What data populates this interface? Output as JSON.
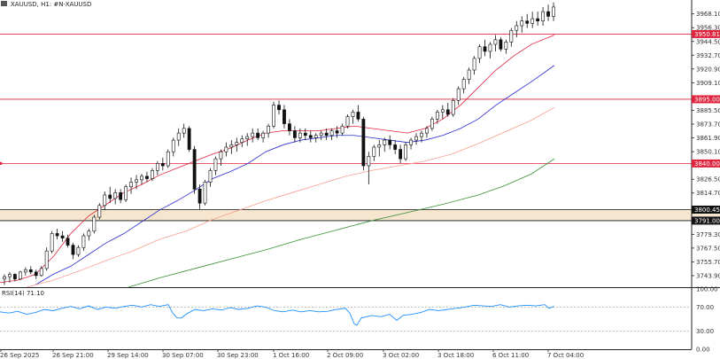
{
  "chart_header": {
    "symbol_label": "XAUUSD, H1:  #N-XAUUSD"
  },
  "rsi_header": {
    "label": "RSI(14) 71.10"
  },
  "price_axis": {
    "ticks": [
      "3968.10",
      "3956.30",
      "3944.50",
      "3932.70",
      "3920.90",
      "3909.10",
      "3885.50",
      "3873.70",
      "3861.90",
      "3850.10",
      "3826.50",
      "3814.70",
      "3779.30",
      "3767.50",
      "3755.70",
      "3743.90"
    ],
    "tick_values": [
      3968.1,
      3956.3,
      3944.5,
      3932.7,
      3920.9,
      3909.1,
      3885.5,
      3873.7,
      3861.9,
      3850.1,
      3826.5,
      3814.7,
      3779.3,
      3767.5,
      3755.7,
      3743.9
    ]
  },
  "price_tags": [
    {
      "text": "3950.81",
      "value": 3950.81,
      "color": "#e0233c"
    },
    {
      "text": "3895.00",
      "value": 3895.0,
      "color": "#e0233c"
    },
    {
      "text": "3840.00",
      "value": 3840.0,
      "color": "#e0233c"
    },
    {
      "text": "3800.45",
      "value": 3800.45,
      "color": "#111111"
    },
    {
      "text": "3791.00",
      "value": 3791.0,
      "color": "#111111"
    }
  ],
  "rsi_axis": {
    "ticks": [
      "100.00",
      "70.00",
      "30.00",
      "0.00"
    ],
    "tick_values": [
      100,
      70,
      30,
      0
    ]
  },
  "time_axis": {
    "labels": [
      "26 Sep 2025",
      "26 Sep 21:00",
      "29 Sep 14:00",
      "30 Sep 07:00",
      "30 Sep 23:00",
      "1 Oct 16:00",
      "2 Oct 09:00",
      "3 Oct 02:00",
      "3 Oct 18:00",
      "6 Oct 11:00",
      "7 Oct 04:00"
    ]
  },
  "chart_data": {
    "type": "candlestick",
    "ylim": [
      3734,
      3980
    ],
    "rsi_ylim": [
      0,
      100
    ],
    "horizontal_lines": [
      {
        "value": 3950.81,
        "color": "#e0233c"
      },
      {
        "value": 3895.0,
        "color": "#e0233c"
      },
      {
        "value": 3840.0,
        "color": "#e0233c"
      }
    ],
    "support_zone": {
      "low": 3791.0,
      "high": 3800.45,
      "color": "#f7e6cf"
    },
    "moving_averages": [
      {
        "color": "#e0233c",
        "points": [
          [
            0,
            3738
          ],
          [
            20,
            3740
          ],
          [
            40,
            3745
          ],
          [
            60,
            3760
          ],
          [
            80,
            3780
          ],
          [
            100,
            3795
          ],
          [
            120,
            3805
          ],
          [
            140,
            3815
          ],
          [
            160,
            3822
          ],
          [
            180,
            3830
          ],
          [
            200,
            3836
          ],
          [
            220,
            3842
          ],
          [
            240,
            3848
          ],
          [
            260,
            3853
          ],
          [
            280,
            3860
          ],
          [
            300,
            3866
          ],
          [
            320,
            3868
          ],
          [
            340,
            3868
          ],
          [
            360,
            3868
          ],
          [
            380,
            3870
          ],
          [
            400,
            3872
          ],
          [
            420,
            3870
          ],
          [
            440,
            3868
          ],
          [
            460,
            3866
          ],
          [
            480,
            3870
          ],
          [
            500,
            3878
          ],
          [
            520,
            3890
          ],
          [
            540,
            3905
          ],
          [
            560,
            3920
          ],
          [
            580,
            3932
          ],
          [
            600,
            3942
          ],
          [
            626,
            3950
          ]
        ]
      },
      {
        "color": "#2a2ad0",
        "points": [
          [
            40,
            3736
          ],
          [
            60,
            3745
          ],
          [
            80,
            3752
          ],
          [
            100,
            3762
          ],
          [
            120,
            3772
          ],
          [
            140,
            3780
          ],
          [
            160,
            3790
          ],
          [
            180,
            3800
          ],
          [
            200,
            3808
          ],
          [
            220,
            3817
          ],
          [
            240,
            3827
          ],
          [
            260,
            3833
          ],
          [
            280,
            3840
          ],
          [
            300,
            3850
          ],
          [
            320,
            3856
          ],
          [
            340,
            3860
          ],
          [
            360,
            3862
          ],
          [
            380,
            3864
          ],
          [
            400,
            3864
          ],
          [
            420,
            3862
          ],
          [
            440,
            3860
          ],
          [
            460,
            3858
          ],
          [
            480,
            3860
          ],
          [
            500,
            3864
          ],
          [
            520,
            3870
          ],
          [
            540,
            3878
          ],
          [
            560,
            3890
          ],
          [
            580,
            3900
          ],
          [
            600,
            3910
          ],
          [
            626,
            3924
          ]
        ]
      },
      {
        "color": "#f5a08c",
        "points": [
          [
            30,
            3734
          ],
          [
            60,
            3740
          ],
          [
            90,
            3748
          ],
          [
            120,
            3757
          ],
          [
            150,
            3765
          ],
          [
            180,
            3775
          ],
          [
            210,
            3782
          ],
          [
            240,
            3792
          ],
          [
            270,
            3800
          ],
          [
            300,
            3808
          ],
          [
            330,
            3815
          ],
          [
            360,
            3822
          ],
          [
            390,
            3829
          ],
          [
            420,
            3834
          ],
          [
            450,
            3838
          ],
          [
            480,
            3842
          ],
          [
            510,
            3848
          ],
          [
            540,
            3857
          ],
          [
            570,
            3867
          ],
          [
            600,
            3877
          ],
          [
            626,
            3888
          ]
        ]
      },
      {
        "color": "#3a8f35",
        "points": [
          [
            145,
            3734
          ],
          [
            180,
            3742
          ],
          [
            220,
            3750
          ],
          [
            260,
            3758
          ],
          [
            300,
            3766
          ],
          [
            340,
            3775
          ],
          [
            380,
            3783
          ],
          [
            420,
            3791
          ],
          [
            460,
            3798
          ],
          [
            500,
            3805
          ],
          [
            540,
            3813
          ],
          [
            570,
            3821
          ],
          [
            600,
            3831
          ],
          [
            626,
            3844
          ]
        ]
      }
    ],
    "rsi": [
      [
        0,
        62
      ],
      [
        10,
        60
      ],
      [
        20,
        63
      ],
      [
        30,
        58
      ],
      [
        40,
        61
      ],
      [
        50,
        66
      ],
      [
        60,
        64
      ],
      [
        70,
        68
      ],
      [
        80,
        71
      ],
      [
        90,
        67
      ],
      [
        100,
        72
      ],
      [
        110,
        66
      ],
      [
        120,
        70
      ],
      [
        130,
        68
      ],
      [
        140,
        71
      ],
      [
        150,
        73
      ],
      [
        160,
        70
      ],
      [
        170,
        74
      ],
      [
        180,
        71
      ],
      [
        190,
        74
      ],
      [
        195,
        60
      ],
      [
        200,
        52
      ],
      [
        205,
        52
      ],
      [
        210,
        58
      ],
      [
        220,
        66
      ],
      [
        230,
        64
      ],
      [
        240,
        67
      ],
      [
        250,
        65
      ],
      [
        260,
        69
      ],
      [
        270,
        66
      ],
      [
        280,
        68
      ],
      [
        290,
        72
      ],
      [
        300,
        70
      ],
      [
        310,
        64
      ],
      [
        320,
        62
      ],
      [
        330,
        65
      ],
      [
        340,
        62
      ],
      [
        350,
        64
      ],
      [
        360,
        62
      ],
      [
        370,
        63
      ],
      [
        380,
        66
      ],
      [
        390,
        68
      ],
      [
        395,
        60
      ],
      [
        400,
        42
      ],
      [
        403,
        40
      ],
      [
        408,
        52
      ],
      [
        420,
        56
      ],
      [
        430,
        54
      ],
      [
        440,
        58
      ],
      [
        448,
        48
      ],
      [
        455,
        56
      ],
      [
        465,
        58
      ],
      [
        475,
        61
      ],
      [
        485,
        66
      ],
      [
        495,
        64
      ],
      [
        505,
        66
      ],
      [
        515,
        68
      ],
      [
        525,
        70
      ],
      [
        535,
        73
      ],
      [
        545,
        72
      ],
      [
        555,
        71
      ],
      [
        565,
        74
      ],
      [
        575,
        70
      ],
      [
        585,
        72
      ],
      [
        595,
        73
      ],
      [
        605,
        72
      ],
      [
        615,
        74
      ],
      [
        620,
        68
      ],
      [
        626,
        71
      ]
    ],
    "candles": [
      [
        3741,
        3745,
        3736,
        3743
      ],
      [
        3743,
        3747,
        3738,
        3745
      ],
      [
        3745,
        3746,
        3739,
        3741
      ],
      [
        3741,
        3748,
        3740,
        3747
      ],
      [
        3747,
        3751,
        3744,
        3749
      ],
      [
        3749,
        3752,
        3745,
        3747
      ],
      [
        3747,
        3749,
        3741,
        3744
      ],
      [
        3744,
        3752,
        3743,
        3750
      ],
      [
        3750,
        3768,
        3748,
        3765
      ],
      [
        3765,
        3782,
        3763,
        3780
      ],
      [
        3780,
        3784,
        3775,
        3778
      ],
      [
        3778,
        3782,
        3773,
        3776
      ],
      [
        3776,
        3779,
        3768,
        3770
      ],
      [
        3770,
        3772,
        3758,
        3762
      ],
      [
        3762,
        3770,
        3760,
        3768
      ],
      [
        3768,
        3780,
        3765,
        3778
      ],
      [
        3778,
        3784,
        3774,
        3782
      ],
      [
        3782,
        3796,
        3780,
        3794
      ],
      [
        3794,
        3806,
        3792,
        3804
      ],
      [
        3804,
        3816,
        3800,
        3813
      ],
      [
        3813,
        3820,
        3806,
        3810
      ],
      [
        3810,
        3818,
        3805,
        3815
      ],
      [
        3815,
        3818,
        3806,
        3809
      ],
      [
        3809,
        3822,
        3807,
        3820
      ],
      [
        3820,
        3828,
        3814,
        3824
      ],
      [
        3824,
        3830,
        3818,
        3826
      ],
      [
        3826,
        3831,
        3822,
        3829
      ],
      [
        3829,
        3833,
        3824,
        3827
      ],
      [
        3827,
        3836,
        3825,
        3834
      ],
      [
        3834,
        3842,
        3830,
        3840
      ],
      [
        3840,
        3845,
        3834,
        3838
      ],
      [
        3838,
        3852,
        3836,
        3850
      ],
      [
        3850,
        3862,
        3846,
        3860
      ],
      [
        3860,
        3870,
        3855,
        3866
      ],
      [
        3866,
        3874,
        3862,
        3870
      ],
      [
        3870,
        3872,
        3850,
        3852
      ],
      [
        3852,
        3855,
        3814,
        3818
      ],
      [
        3818,
        3822,
        3801,
        3806
      ],
      [
        3806,
        3826,
        3804,
        3824
      ],
      [
        3824,
        3836,
        3820,
        3834
      ],
      [
        3834,
        3846,
        3830,
        3844
      ],
      [
        3844,
        3852,
        3838,
        3850
      ],
      [
        3850,
        3858,
        3846,
        3854
      ],
      [
        3854,
        3860,
        3848,
        3856
      ],
      [
        3856,
        3862,
        3850,
        3858
      ],
      [
        3858,
        3864,
        3854,
        3861
      ],
      [
        3861,
        3866,
        3855,
        3863
      ],
      [
        3863,
        3870,
        3858,
        3866
      ],
      [
        3866,
        3870,
        3860,
        3862
      ],
      [
        3862,
        3868,
        3858,
        3866
      ],
      [
        3866,
        3874,
        3862,
        3872
      ],
      [
        3872,
        3893,
        3870,
        3890
      ],
      [
        3890,
        3894,
        3882,
        3886
      ],
      [
        3886,
        3890,
        3870,
        3874
      ],
      [
        3874,
        3878,
        3864,
        3868
      ],
      [
        3868,
        3872,
        3858,
        3862
      ],
      [
        3862,
        3870,
        3858,
        3866
      ],
      [
        3866,
        3870,
        3860,
        3864
      ],
      [
        3864,
        3868,
        3858,
        3862
      ],
      [
        3862,
        3866,
        3858,
        3864
      ],
      [
        3864,
        3868,
        3860,
        3866
      ],
      [
        3866,
        3870,
        3860,
        3864
      ],
      [
        3864,
        3870,
        3860,
        3868
      ],
      [
        3868,
        3872,
        3862,
        3866
      ],
      [
        3866,
        3874,
        3864,
        3872
      ],
      [
        3872,
        3882,
        3870,
        3880
      ],
      [
        3880,
        3886,
        3874,
        3884
      ],
      [
        3884,
        3890,
        3876,
        3878
      ],
      [
        3878,
        3880,
        3834,
        3838
      ],
      [
        3838,
        3850,
        3822,
        3846
      ],
      [
        3846,
        3856,
        3842,
        3854
      ],
      [
        3854,
        3860,
        3846,
        3856
      ],
      [
        3856,
        3862,
        3850,
        3860
      ],
      [
        3860,
        3864,
        3852,
        3856
      ],
      [
        3856,
        3860,
        3848,
        3852
      ],
      [
        3852,
        3856,
        3840,
        3844
      ],
      [
        3844,
        3858,
        3842,
        3856
      ],
      [
        3856,
        3862,
        3852,
        3860
      ],
      [
        3860,
        3866,
        3856,
        3863
      ],
      [
        3863,
        3868,
        3858,
        3866
      ],
      [
        3866,
        3872,
        3862,
        3870
      ],
      [
        3870,
        3880,
        3868,
        3878
      ],
      [
        3878,
        3886,
        3874,
        3884
      ],
      [
        3884,
        3890,
        3878,
        3886
      ],
      [
        3886,
        3892,
        3880,
        3882
      ],
      [
        3882,
        3896,
        3880,
        3894
      ],
      [
        3894,
        3906,
        3890,
        3904
      ],
      [
        3904,
        3914,
        3900,
        3912
      ],
      [
        3912,
        3922,
        3908,
        3920
      ],
      [
        3920,
        3932,
        3916,
        3930
      ],
      [
        3930,
        3942,
        3926,
        3940
      ],
      [
        3940,
        3946,
        3932,
        3936
      ],
      [
        3936,
        3944,
        3930,
        3942
      ],
      [
        3942,
        3950,
        3936,
        3946
      ],
      [
        3946,
        3948,
        3936,
        3938
      ],
      [
        3938,
        3946,
        3934,
        3944
      ],
      [
        3944,
        3956,
        3940,
        3954
      ],
      [
        3954,
        3962,
        3948,
        3958
      ],
      [
        3958,
        3966,
        3952,
        3962
      ],
      [
        3962,
        3968,
        3956,
        3960
      ],
      [
        3960,
        3970,
        3956,
        3964
      ],
      [
        3964,
        3970,
        3958,
        3962
      ],
      [
        3962,
        3974,
        3958,
        3970
      ],
      [
        3970,
        3976,
        3962,
        3966
      ],
      [
        3966,
        3978,
        3962,
        3974
      ]
    ]
  }
}
